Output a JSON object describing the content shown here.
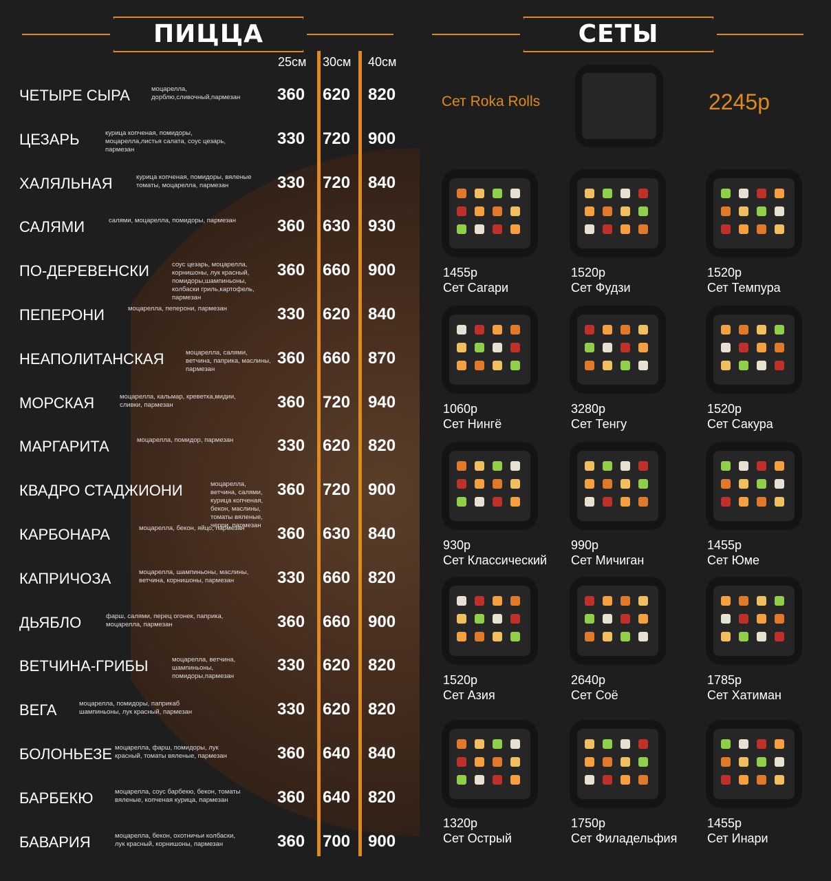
{
  "colors": {
    "accent": "#e08a1e",
    "background": "#1e1e1e"
  },
  "pizza": {
    "title": "ПИЦЦА",
    "sizes": [
      "25см",
      "30см",
      "40см"
    ],
    "items": [
      {
        "name": "ЧЕТЫРЕ СЫРА",
        "desc": "моцарелла, дорблю,сливочный,пармезан",
        "p25": "360",
        "p30": "620",
        "p40": "820"
      },
      {
        "name": "ЦЕЗАРЬ",
        "desc": "курица копченая, помидоры, моцарелла,листья салата, соус цезарь, пармезан",
        "p25": "330",
        "p30": "720",
        "p40": "900"
      },
      {
        "name": "ХАЛЯЛЬНАЯ",
        "desc": "курица копченая, помидоры, вяленые томаты, моцарелла, пармезан",
        "p25": "330",
        "p30": "720",
        "p40": "840"
      },
      {
        "name": "САЛЯМИ",
        "desc": "салями, моцарелла, помидоры, пармезан",
        "p25": "360",
        "p30": "630",
        "p40": "930"
      },
      {
        "name": "ПО-ДЕРЕВЕНСКИ",
        "desc": "соус цезарь, моцарелла, корнишоны, лук красный, помидоры,шампиньоны, колбаски гриль,картофель, пармезан",
        "p25": "360",
        "p30": "660",
        "p40": "900"
      },
      {
        "name": "ПЕПЕРОНИ",
        "desc": "моцарелла, пеперони, пармезан",
        "p25": "330",
        "p30": "620",
        "p40": "840"
      },
      {
        "name": "НЕАПОЛИТАНСКАЯ",
        "desc": "моцарелла, салями, ветчина, паприка, маслины, пармезан",
        "p25": "360",
        "p30": "660",
        "p40": "870"
      },
      {
        "name": "МОРСКАЯ",
        "desc": "моцарелла, кальмар, креветка,мидии, сливки, пармезан",
        "p25": "360",
        "p30": "720",
        "p40": "940"
      },
      {
        "name": "МАРГАРИТА",
        "desc": "моцарелла, помидор, пармезан",
        "p25": "330",
        "p30": "620",
        "p40": "820"
      },
      {
        "name": "КВАДРО СТАДЖИОНИ",
        "desc": "моцарелла, ветчина, салями, курица копченая, бекон, маслины, томаты вяленые, черри, пармезан",
        "p25": "360",
        "p30": "720",
        "p40": "900"
      },
      {
        "name": "КАРБОНАРА",
        "desc": "моцарелла, бекон, яйцо, пармезан",
        "p25": "360",
        "p30": "630",
        "p40": "840"
      },
      {
        "name": "КАПРИЧОЗА",
        "desc": "моцарелла, шампиньоны, маслины, ветчина, корнишоны, пармезан",
        "p25": "330",
        "p30": "660",
        "p40": "820"
      },
      {
        "name": "ДЬЯБЛО",
        "desc": "фарш, салями, перец огонек, паприка, моцарелла, пармезан",
        "p25": "360",
        "p30": "660",
        "p40": "900"
      },
      {
        "name": "ВЕТЧИНА-ГРИБЫ",
        "desc": "моцарелла, ветчина, шампиньоны, помидоры,пармезан",
        "p25": "330",
        "p30": "620",
        "p40": "820"
      },
      {
        "name": "ВЕГА",
        "desc": "моцарелла, помидоры, паприкаб шампиньоны, лук красный, пармезан",
        "p25": "330",
        "p30": "620",
        "p40": "820"
      },
      {
        "name": "БОЛОНЬЕЗЕ",
        "desc": "моцарелла, фарш, помидоры, лук красный, томаты вяленые, пармезан",
        "p25": "360",
        "p30": "640",
        "p40": "840"
      },
      {
        "name": "БАРБЕКЮ",
        "desc": "моцарелла, соус барбекю, бекон, томаты вяленые, копченая курица, пармезан",
        "p25": "360",
        "p30": "640",
        "p40": "820"
      },
      {
        "name": "БАВАРИЯ",
        "desc": "моцарелла, бекон, охотничьи колбаски, лук красный, корнишоны, пармезан",
        "p25": "360",
        "p30": "700",
        "p40": "900"
      }
    ]
  },
  "sets": {
    "title": "СЕТЫ",
    "featured": {
      "name": "Сет Roka Rolls",
      "price": "2245р"
    },
    "items": [
      {
        "price": "1455р",
        "name": "Сет Сагари"
      },
      {
        "price": "1520р",
        "name": "Сет Фудзи"
      },
      {
        "price": "1520р",
        "name": "Сет Темпура"
      },
      {
        "price": "1060р",
        "name": "Сет Нингё"
      },
      {
        "price": "3280р",
        "name": "Сет Тенгу"
      },
      {
        "price": "1520р",
        "name": "Сет Сакура"
      },
      {
        "price": "930р",
        "name": "Сет Классический"
      },
      {
        "price": "990р",
        "name": "Сет Мичиган"
      },
      {
        "price": "1455р",
        "name": "Сет Юме"
      },
      {
        "price": "1520р",
        "name": "Сет Азия"
      },
      {
        "price": "2640р",
        "name": "Сет Соё"
      },
      {
        "price": "1785р",
        "name": "Сет Хатиман"
      },
      {
        "price": "1320р",
        "name": "Сет Острый"
      },
      {
        "price": "1750р",
        "name": "Сет Филадельфия"
      },
      {
        "price": "1455р",
        "name": "Сет Инари"
      }
    ]
  }
}
